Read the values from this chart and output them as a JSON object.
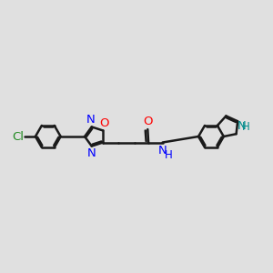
{
  "background_color": "#e0e0e0",
  "bond_color": "#1a1a1a",
  "bond_width": 1.8,
  "dbo": 0.055,
  "font_size": 9.5,
  "figsize": [
    3.0,
    3.0
  ],
  "dpi": 100,
  "xlim": [
    -0.3,
    10.3
  ],
  "ylim": [
    2.8,
    7.2
  ]
}
